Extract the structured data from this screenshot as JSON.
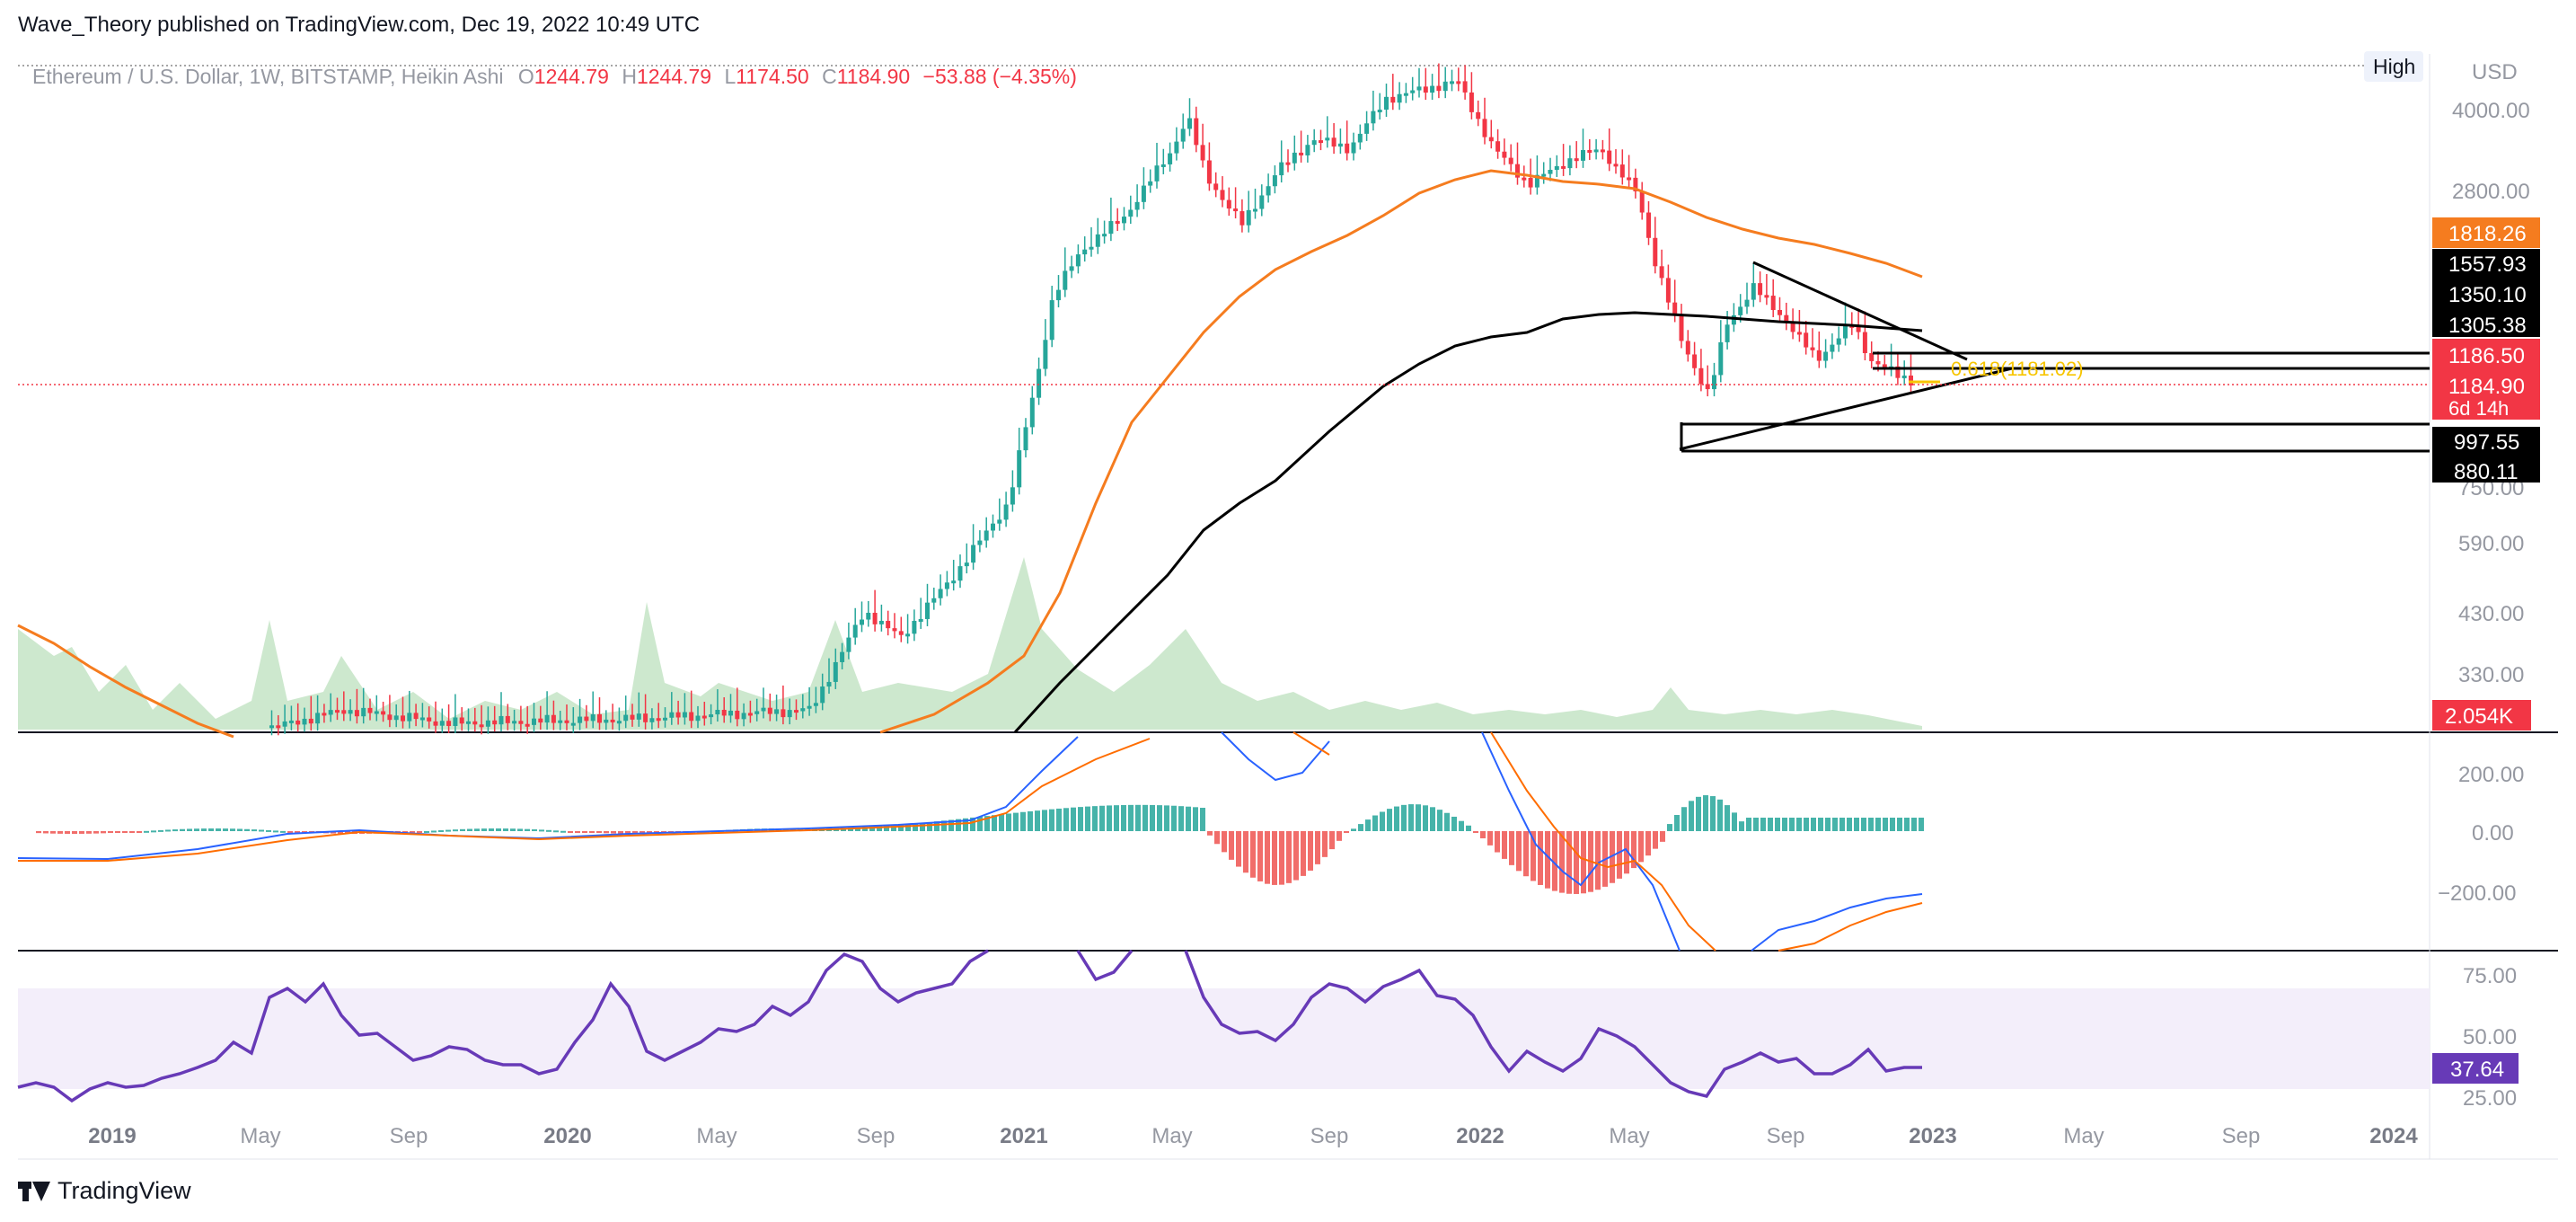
{
  "publish_line": "Wave_Theory published on TradingView.com, Dec 19, 2022 10:49 UTC",
  "legend": {
    "symbol": "Ethereum / U.S. Dollar, 1W, BITSTAMP, Heikin Ashi",
    "o_label": "O",
    "o_value": "1244.79",
    "h_label": "H",
    "h_value": "1244.79",
    "l_label": "L",
    "l_value": "1174.50",
    "c_label": "C",
    "c_value": "1184.90",
    "change": "−53.88 (−4.35%)"
  },
  "high_badge": "High",
  "currency": "USD",
  "price_axis": [
    "4000.00",
    "2800.00",
    "590.00",
    "430.00",
    "330.00"
  ],
  "price_axis_partial": "750.00",
  "price_tags": [
    {
      "text": "1818.26",
      "bg": "#f57c1f",
      "fg": "#ffffff"
    },
    {
      "text": "1557.93",
      "bg": "#000000",
      "fg": "#ffffff"
    },
    {
      "text": "1350.10",
      "bg": "#000000",
      "fg": "#ffffff"
    },
    {
      "text": "1305.38",
      "bg": "#000000",
      "fg": "#ffffff"
    },
    {
      "text": "1186.50",
      "bg": "#f23645",
      "fg": "#ffffff"
    },
    {
      "text": "1184.90",
      "bg": "#f23645",
      "fg": "#ffffff"
    },
    {
      "text": "6d 14h",
      "bg": "#f23645",
      "fg": "#ffffff"
    },
    {
      "text": "997.55",
      "bg": "#000000",
      "fg": "#ffffff"
    },
    {
      "text": "880.11",
      "bg": "#000000",
      "fg": "#ffffff"
    }
  ],
  "fib_label": "0.618(1181.02)",
  "volume_tag": "2.054K",
  "macd_axis": [
    "200.00",
    "0.00",
    "−200.00"
  ],
  "rsi_axis": [
    "75.00",
    "50.00",
    "25.00"
  ],
  "rsi_tag": "37.64",
  "time_axis": [
    "2019",
    "May",
    "Sep",
    "2020",
    "May",
    "Sep",
    "2021",
    "May",
    "Sep",
    "2022",
    "May",
    "Sep",
    "2023",
    "May",
    "Sep",
    "2024"
  ],
  "footer_brand": "TradingView",
  "colors": {
    "up": "#26a69a",
    "down": "#f23645",
    "ema_orange": "#f57c1f",
    "sma_black": "#000000",
    "rsi": "#673ab7",
    "macd_line": "#2962ff",
    "signal_line": "#ff6d00",
    "fib": "#f7c500"
  }
}
